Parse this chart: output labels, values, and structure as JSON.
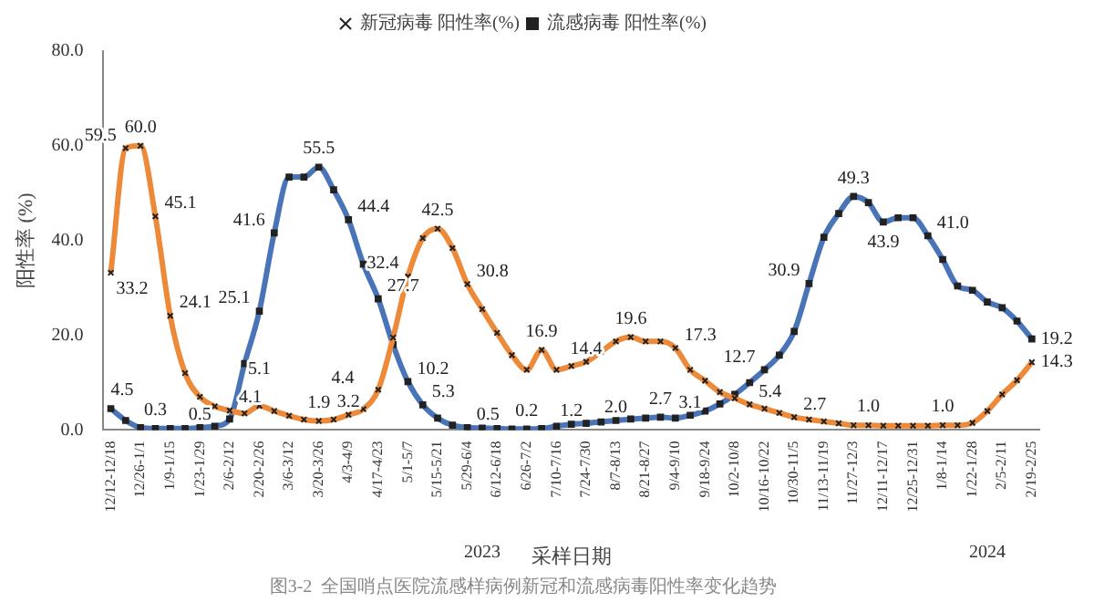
{
  "chart_data": {
    "type": "line",
    "title": "图3-2  全国哨点医院流感样病例新冠和流感病毒阳性率变化趋势",
    "xlabel": "采样日期",
    "ylabel": "阳性率 (%)",
    "annotations": [
      "2023",
      "2024"
    ],
    "categories": [
      "12/12-12/18",
      null,
      "12/26-1/1",
      null,
      "1/9-1/15",
      null,
      "1/23-1/29",
      null,
      "2/6-2/12",
      null,
      "2/20-2/26",
      null,
      "3/6-3/12",
      null,
      "3/20-3/26",
      null,
      "4/3-4/9",
      null,
      "4/17-4/23",
      null,
      "5/1-5/7",
      null,
      "5/15-5/21",
      null,
      "5/29-6/4",
      null,
      "6/12-6/18",
      null,
      "6/26-7/2",
      null,
      "7/10-7/16",
      null,
      "7/24-7/30",
      null,
      "8/7-8/13",
      null,
      "8/21-8/27",
      null,
      "9/4-9/10",
      null,
      "9/18-9/24",
      null,
      "10/2-10/8",
      null,
      "10/16-10/22",
      null,
      "10/30-11/5",
      null,
      "11/13-11/19",
      null,
      "11/27-12/3",
      null,
      "12/11-12/17",
      null,
      "12/25-12/31",
      null,
      "1/8-1/14",
      null,
      "1/22-1/28",
      null,
      "2/5-2/11",
      null,
      "2/19-2/25"
    ],
    "series": [
      {
        "name": "新冠病毒 阳性率(%)",
        "color": "#ed8a3a",
        "marker": "cross",
        "values": [
          33.2,
          59.5,
          60.0,
          45.1,
          24.1,
          12,
          7,
          5,
          4.1,
          3.5,
          5.1,
          4,
          3,
          2.2,
          1.9,
          2.2,
          3.2,
          4.4,
          8.5,
          19.5,
          32.4,
          40.5,
          42.5,
          38.4,
          30.8,
          25.5,
          20.5,
          15.8,
          12.7,
          16.9,
          12.7,
          13.5,
          14.4,
          16.5,
          18.7,
          19.6,
          18.7,
          18.7,
          17.3,
          12.7,
          10.4,
          8,
          6.7,
          5.4,
          4.5,
          3.6,
          2.7,
          2.2,
          1.8,
          1.4,
          1.0,
          1.0,
          0.9,
          0.9,
          0.9,
          0.9,
          1.0,
          1.0,
          1.5,
          4,
          7.5,
          10.5,
          14.3
        ],
        "value_labels": [
          "33.2",
          "59.5",
          "60.0",
          "45.1",
          "24.1",
          null,
          null,
          null,
          "4.1",
          null,
          "5.1",
          null,
          null,
          null,
          "1.9",
          null,
          "3.2",
          "4.4",
          null,
          null,
          "32.4",
          null,
          "42.5",
          null,
          "30.8",
          null,
          null,
          null,
          null,
          "16.9",
          null,
          null,
          "14.4",
          null,
          null,
          "19.6",
          null,
          null,
          "17.3",
          null,
          null,
          null,
          null,
          "5.4",
          null,
          null,
          "2.7",
          null,
          null,
          null,
          null,
          "1.0",
          null,
          null,
          null,
          null,
          "1.0",
          null,
          null,
          null,
          null,
          null,
          "14.3"
        ]
      },
      {
        "name": "流感病毒 阳性率(%)",
        "color": "#4a74b8",
        "marker": "square",
        "values": [
          4.5,
          2.0,
          0.5,
          0.3,
          0.3,
          0.3,
          0.5,
          0.8,
          2.3,
          14.0,
          25.1,
          41.6,
          53.4,
          53.4,
          55.5,
          50.7,
          44.4,
          35.0,
          27.7,
          18.0,
          10.2,
          5.3,
          2.5,
          1.0,
          0.5,
          0.4,
          0.3,
          0.2,
          0.2,
          0.3,
          0.8,
          1.2,
          1.4,
          1.7,
          2.0,
          2.3,
          2.5,
          2.7,
          2.5,
          3.1,
          4.0,
          5.5,
          7.5,
          10.0,
          12.7,
          15.8,
          20.8,
          30.9,
          40.7,
          45.7,
          49.3,
          48.0,
          43.9,
          44.8,
          44.8,
          41.0,
          36.0,
          30.4,
          29.5,
          27.0,
          25.8,
          23.0,
          19.2
        ],
        "value_labels": [
          "4.5",
          null,
          null,
          "0.3",
          null,
          null,
          "0.5",
          null,
          null,
          null,
          "25.1",
          "41.6",
          null,
          null,
          "55.5",
          null,
          "44.4",
          null,
          "27.7",
          null,
          "10.2",
          "5.3",
          null,
          null,
          "0.5",
          null,
          null,
          null,
          "0.2",
          null,
          null,
          "1.2",
          null,
          null,
          "2.0",
          null,
          null,
          "2.7",
          null,
          "3.1",
          null,
          null,
          null,
          null,
          "12.7",
          null,
          null,
          "30.9",
          null,
          null,
          "49.3",
          null,
          "43.9",
          null,
          null,
          "41.0",
          null,
          null,
          null,
          null,
          null,
          null,
          "19.2"
        ]
      }
    ],
    "ylim": [
      0,
      80
    ],
    "yticks": [
      {
        "value": 0,
        "label": "0.0"
      },
      {
        "value": 20,
        "label": "20.0"
      },
      {
        "value": 40,
        "label": "40.0"
      },
      {
        "value": 60,
        "label": "60.0"
      },
      {
        "value": 80,
        "label": "80.0"
      }
    ],
    "grid": false,
    "legend": "top",
    "line_style": "solid"
  }
}
